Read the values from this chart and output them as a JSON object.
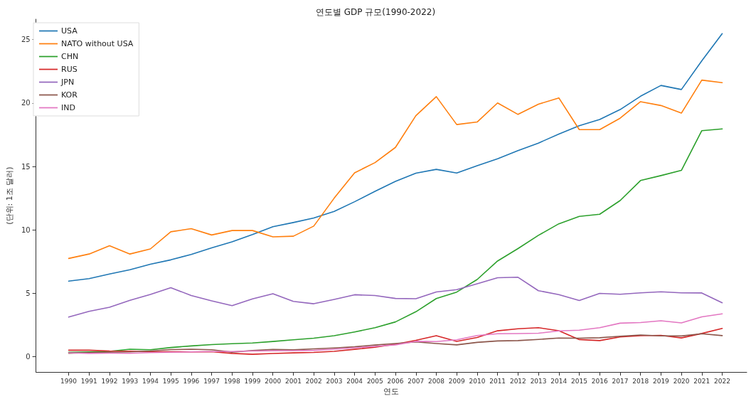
{
  "chart_data": {
    "type": "line",
    "title": "연도별 GDP 규모(1990-2022)",
    "xlabel": "연도",
    "ylabel": "(단위: 1조 달러)",
    "x": [
      1990,
      1991,
      1992,
      1993,
      1994,
      1995,
      1996,
      1997,
      1998,
      1999,
      2000,
      2001,
      2002,
      2003,
      2004,
      2005,
      2006,
      2007,
      2008,
      2009,
      2010,
      2011,
      2012,
      2013,
      2014,
      2015,
      2016,
      2017,
      2018,
      2019,
      2020,
      2021,
      2022
    ],
    "xlim": [
      1988.4,
      2023.2
    ],
    "xticks": [
      1990,
      1991,
      1992,
      1993,
      1994,
      1995,
      1996,
      1997,
      1998,
      1999,
      2000,
      2001,
      2002,
      2003,
      2004,
      2005,
      2006,
      2007,
      2008,
      2009,
      2010,
      2011,
      2012,
      2013,
      2014,
      2015,
      2016,
      2017,
      2018,
      2019,
      2020,
      2021,
      2022
    ],
    "ylim": [
      -1.2,
      26.6
    ],
    "yticks": [
      0,
      5,
      10,
      15,
      20,
      25
    ],
    "grid": false,
    "legend": "top left",
    "marker": "none",
    "line_style": "solid",
    "series": [
      {
        "name": "USA",
        "color": "#1f77b4",
        "values": [
          5.96,
          6.16,
          6.52,
          6.86,
          7.29,
          7.64,
          8.07,
          8.58,
          9.06,
          9.63,
          10.25,
          10.58,
          10.94,
          11.46,
          12.22,
          13.04,
          13.82,
          14.47,
          14.77,
          14.48,
          15.05,
          15.6,
          16.25,
          16.84,
          17.55,
          18.21,
          18.7,
          19.48,
          20.53,
          21.38,
          21.06,
          23.32,
          25.46
        ]
      },
      {
        "name": "NATO without USA",
        "color": "#ff7f0e",
        "values": [
          7.75,
          8.1,
          8.75,
          8.1,
          8.5,
          9.85,
          10.1,
          9.6,
          9.95,
          9.95,
          9.45,
          9.5,
          10.3,
          12.5,
          14.5,
          15.3,
          16.5,
          19,
          20.5,
          18.3,
          18.5,
          20,
          19.1,
          19.9,
          20.4,
          17.9,
          17.9,
          18.8,
          20.1,
          19.8,
          19.2,
          21.8,
          21.6
        ]
      },
      {
        "name": "CHN",
        "color": "#2ca02c",
        "values": [
          0.36,
          0.38,
          0.43,
          0.6,
          0.56,
          0.73,
          0.86,
          0.96,
          1.03,
          1.09,
          1.21,
          1.34,
          1.47,
          1.66,
          1.96,
          2.29,
          2.75,
          3.55,
          4.59,
          5.1,
          6.09,
          7.55,
          8.53,
          9.57,
          10.48,
          11.06,
          11.23,
          12.31,
          13.89,
          14.28,
          14.69,
          17.82,
          17.96
        ]
      },
      {
        "name": "RUS",
        "color": "#d62728",
        "values": [
          0.52,
          0.52,
          0.46,
          0.44,
          0.4,
          0.4,
          0.39,
          0.4,
          0.27,
          0.2,
          0.26,
          0.31,
          0.35,
          0.43,
          0.59,
          0.76,
          0.99,
          1.3,
          1.66,
          1.22,
          1.52,
          2.05,
          2.21,
          2.29,
          2.06,
          1.36,
          1.28,
          1.57,
          1.66,
          1.69,
          1.49,
          1.84,
          2.24
        ]
      },
      {
        "name": "JPN",
        "color": "#9467bd",
        "values": [
          3.13,
          3.58,
          3.91,
          4.45,
          4.91,
          5.45,
          4.83,
          4.41,
          4.03,
          4.56,
          4.97,
          4.37,
          4.18,
          4.52,
          4.89,
          4.83,
          4.6,
          4.58,
          5.11,
          5.29,
          5.76,
          6.23,
          6.27,
          5.21,
          4.9,
          4.44,
          5.0,
          4.93,
          5.04,
          5.12,
          5.04,
          5.03,
          4.26
        ]
      },
      {
        "name": "KOR",
        "color": "#8c564b",
        "values": [
          0.28,
          0.33,
          0.36,
          0.39,
          0.46,
          0.57,
          0.6,
          0.56,
          0.37,
          0.5,
          0.58,
          0.55,
          0.63,
          0.7,
          0.79,
          0.93,
          1.05,
          1.17,
          1.05,
          0.94,
          1.14,
          1.25,
          1.28,
          1.37,
          1.48,
          1.47,
          1.5,
          1.62,
          1.72,
          1.65,
          1.64,
          1.82,
          1.67
        ]
      },
      {
        "name": "IND",
        "color": "#e377c2",
        "values": [
          0.32,
          0.27,
          0.29,
          0.28,
          0.33,
          0.36,
          0.39,
          0.42,
          0.42,
          0.46,
          0.47,
          0.49,
          0.51,
          0.6,
          0.71,
          0.82,
          0.94,
          1.22,
          1.2,
          1.34,
          1.68,
          1.82,
          1.83,
          1.86,
          2.04,
          2.1,
          2.29,
          2.65,
          2.7,
          2.84,
          2.67,
          3.15,
          3.39
        ]
      }
    ]
  }
}
